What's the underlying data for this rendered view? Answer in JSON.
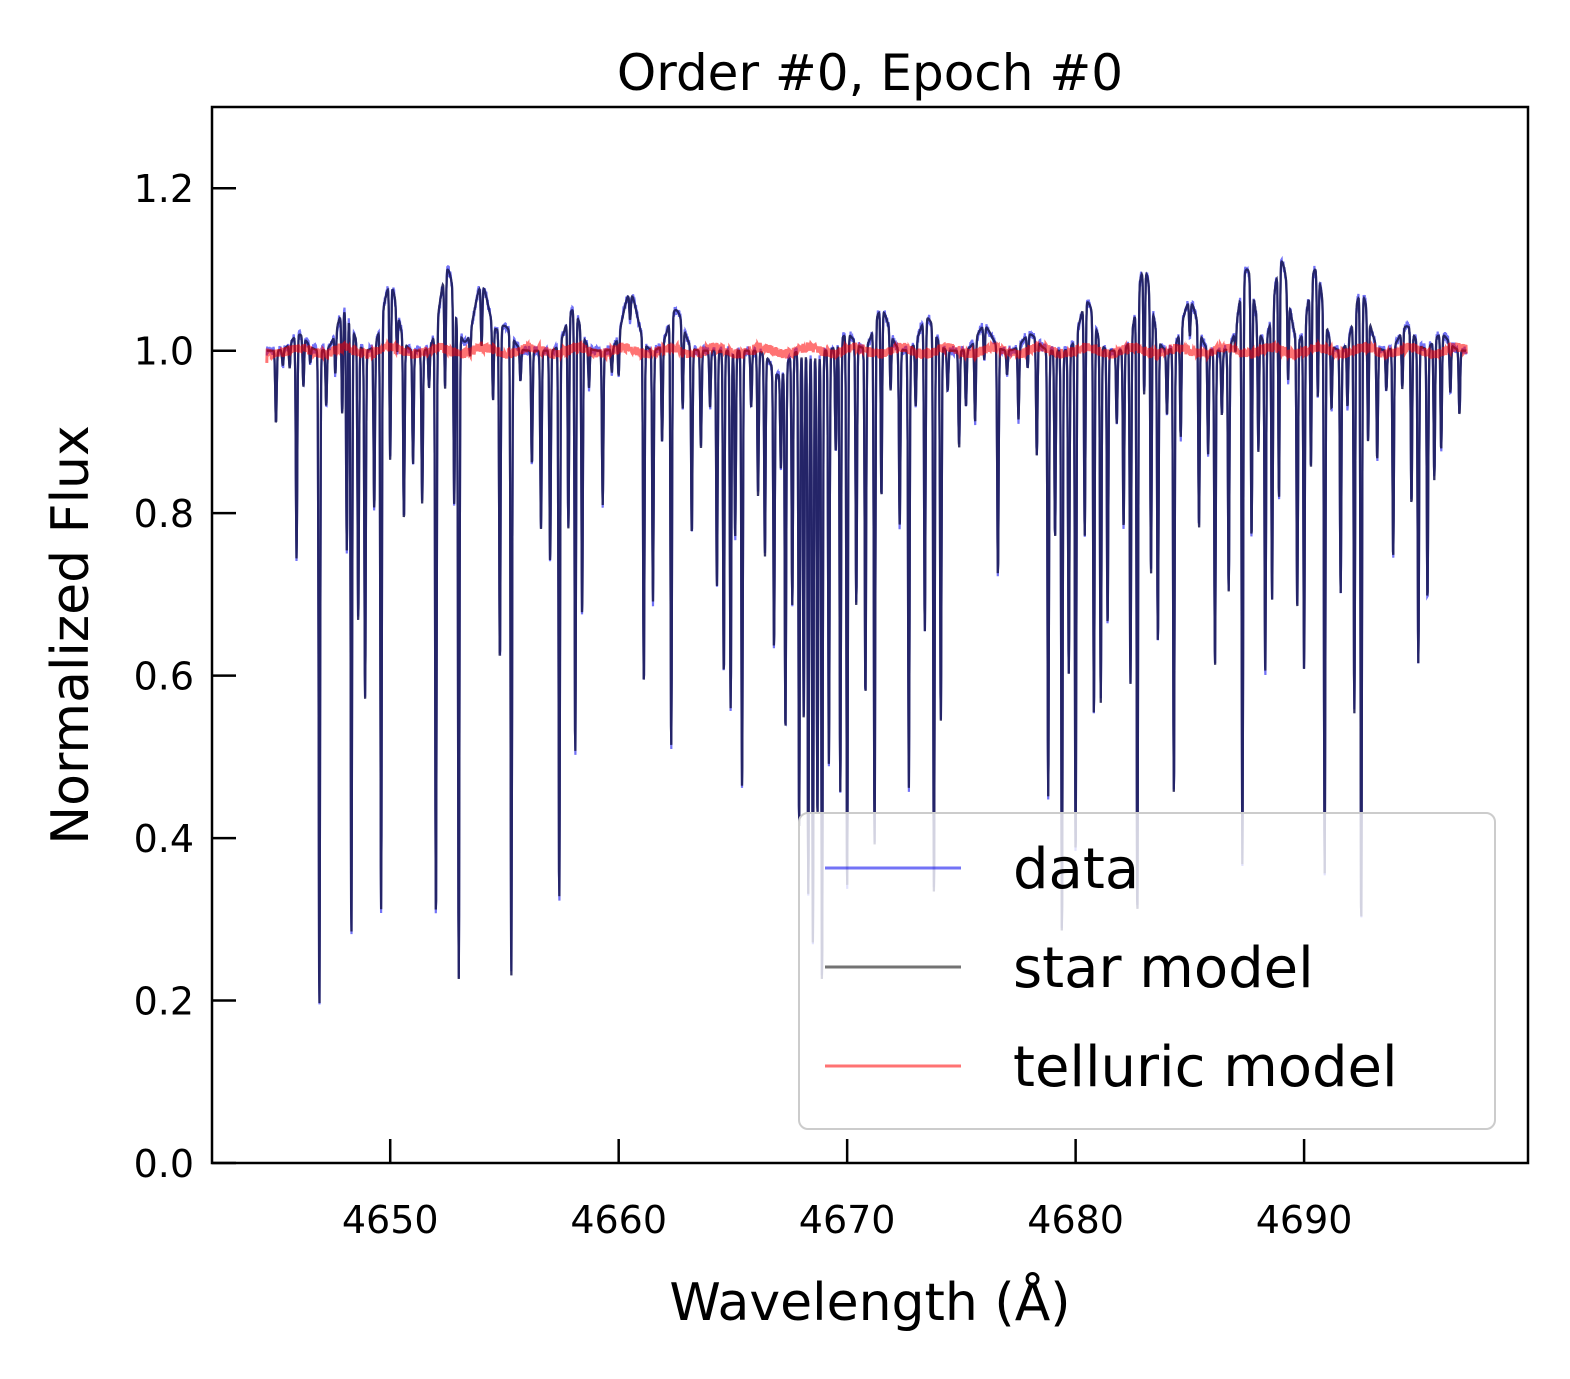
{
  "chart_data": {
    "type": "line",
    "title": "Order #0, Epoch #0",
    "xlabel": "Wavelength (Å)",
    "ylabel": "Normalized Flux",
    "xlim": [
      4642.2,
      4699.8
    ],
    "ylim": [
      0.0,
      1.3
    ],
    "xticks": [
      4650,
      4660,
      4670,
      4680,
      4690
    ],
    "xtick_labels": [
      "4650",
      "4660",
      "4670",
      "4680",
      "4690"
    ],
    "yticks": [
      0.0,
      0.2,
      0.4,
      0.6,
      0.8,
      1.0,
      1.2
    ],
    "ytick_labels": [
      "0.0",
      "0.2",
      "0.4",
      "0.6",
      "0.8",
      "1.0",
      "1.2"
    ],
    "grid": false,
    "legend_position": "lower-right",
    "series": [
      {
        "name": "data",
        "color": "#0000ee",
        "opacity": 0.55,
        "stroke_width": 2.2
      },
      {
        "name": "star model",
        "color": "#000000",
        "opacity": 0.55,
        "stroke_width": 2.2
      },
      {
        "name": "telluric model",
        "color": "#ff0000",
        "opacity": 0.55,
        "stroke_width": 3
      },
      {
        "name": "",
        "color": "#1f1f66",
        "opacity": 0.75,
        "stroke_width": 2.2
      }
    ],
    "x_range": [
      4644.6,
      4697.1
    ],
    "continuum": 1.0,
    "absorption_lines": [
      [
        4645.0,
        0.91
      ],
      [
        4645.3,
        0.98
      ],
      [
        4645.6,
        0.97
      ],
      [
        4645.9,
        0.73
      ],
      [
        4646.2,
        0.94
      ],
      [
        4646.5,
        0.98
      ],
      [
        4646.9,
        0.19
      ],
      [
        4647.2,
        0.93
      ],
      [
        4647.6,
        0.95
      ],
      [
        4647.9,
        0.88
      ],
      [
        4648.1,
        0.72
      ],
      [
        4648.3,
        0.27
      ],
      [
        4648.6,
        0.66
      ],
      [
        4648.9,
        0.57
      ],
      [
        4649.3,
        0.8
      ],
      [
        4649.6,
        0.3
      ],
      [
        4650.0,
        0.8
      ],
      [
        4650.3,
        0.95
      ],
      [
        4650.6,
        0.78
      ],
      [
        4651.0,
        0.86
      ],
      [
        4651.4,
        0.81
      ],
      [
        4651.7,
        0.95
      ],
      [
        4652.0,
        0.29
      ],
      [
        4652.4,
        0.87
      ],
      [
        4652.8,
        0.76
      ],
      [
        4653.0,
        0.22
      ],
      [
        4653.5,
        0.97
      ],
      [
        4654.0,
        0.93
      ],
      [
        4654.5,
        0.91
      ],
      [
        4654.8,
        0.6
      ],
      [
        4655.3,
        0.22
      ],
      [
        4655.7,
        0.96
      ],
      [
        4656.2,
        0.86
      ],
      [
        4656.6,
        0.78
      ],
      [
        4657.0,
        0.74
      ],
      [
        4657.4,
        0.32
      ],
      [
        4657.8,
        0.75
      ],
      [
        4658.1,
        0.48
      ],
      [
        4658.4,
        0.66
      ],
      [
        4658.7,
        0.95
      ],
      [
        4659.3,
        0.81
      ],
      [
        4659.7,
        0.97
      ],
      [
        4660.0,
        0.95
      ],
      [
        4660.5,
        0.97
      ],
      [
        4661.1,
        0.58
      ],
      [
        4661.5,
        0.69
      ],
      [
        4661.9,
        0.88
      ],
      [
        4662.3,
        0.49
      ],
      [
        4662.8,
        0.9
      ],
      [
        4663.2,
        0.77
      ],
      [
        4663.6,
        0.88
      ],
      [
        4664.0,
        0.93
      ],
      [
        4664.3,
        0.71
      ],
      [
        4664.6,
        0.6
      ],
      [
        4664.9,
        0.56
      ],
      [
        4665.1,
        0.77
      ],
      [
        4665.4,
        0.46
      ],
      [
        4665.8,
        0.93
      ],
      [
        4666.1,
        0.82
      ],
      [
        4666.4,
        0.75
      ],
      [
        4666.8,
        0.65
      ],
      [
        4667.1,
        0.88
      ],
      [
        4667.3,
        0.54
      ],
      [
        4667.6,
        0.69
      ],
      [
        4667.9,
        0.41
      ],
      [
        4668.1,
        0.54
      ],
      [
        4668.3,
        0.33
      ],
      [
        4668.5,
        0.27
      ],
      [
        4668.7,
        0.42
      ],
      [
        4668.9,
        0.22
      ],
      [
        4669.2,
        0.49
      ],
      [
        4669.5,
        0.87
      ],
      [
        4669.7,
        0.45
      ],
      [
        4670.0,
        0.33
      ],
      [
        4670.4,
        0.68
      ],
      [
        4670.8,
        0.57
      ],
      [
        4671.2,
        0.38
      ],
      [
        4671.5,
        0.78
      ],
      [
        4671.9,
        0.93
      ],
      [
        4672.3,
        0.78
      ],
      [
        4672.7,
        0.46
      ],
      [
        4673.0,
        0.92
      ],
      [
        4673.4,
        0.63
      ],
      [
        4673.8,
        0.32
      ],
      [
        4674.1,
        0.54
      ],
      [
        4674.4,
        0.95
      ],
      [
        4674.9,
        0.88
      ],
      [
        4675.2,
        0.93
      ],
      [
        4675.6,
        0.9
      ],
      [
        4676.0,
        0.96
      ],
      [
        4676.6,
        0.72
      ],
      [
        4677.0,
        0.97
      ],
      [
        4677.5,
        0.91
      ],
      [
        4677.9,
        0.96
      ],
      [
        4678.3,
        0.86
      ],
      [
        4678.8,
        0.45
      ],
      [
        4679.1,
        0.77
      ],
      [
        4679.4,
        0.28
      ],
      [
        4679.7,
        0.6
      ],
      [
        4680.0,
        0.37
      ],
      [
        4680.4,
        0.73
      ],
      [
        4680.8,
        0.53
      ],
      [
        4681.1,
        0.56
      ],
      [
        4681.4,
        0.66
      ],
      [
        4681.8,
        0.91
      ],
      [
        4682.1,
        0.78
      ],
      [
        4682.4,
        0.58
      ],
      [
        4682.7,
        0.28
      ],
      [
        4683.0,
        0.86
      ],
      [
        4683.3,
        0.68
      ],
      [
        4683.6,
        0.63
      ],
      [
        4684.0,
        0.92
      ],
      [
        4684.3,
        0.45
      ],
      [
        4684.6,
        0.87
      ],
      [
        4685.0,
        0.96
      ],
      [
        4685.4,
        0.76
      ],
      [
        4685.8,
        0.87
      ],
      [
        4686.1,
        0.61
      ],
      [
        4686.4,
        0.92
      ],
      [
        4686.7,
        0.7
      ],
      [
        4687.0,
        0.97
      ],
      [
        4687.3,
        0.34
      ],
      [
        4687.7,
        0.71
      ],
      [
        4688.0,
        0.85
      ],
      [
        4688.3,
        0.59
      ],
      [
        4688.6,
        0.66
      ],
      [
        4688.9,
        0.74
      ],
      [
        4689.3,
        0.9
      ],
      [
        4689.7,
        0.67
      ],
      [
        4690.0,
        0.59
      ],
      [
        4690.3,
        0.79
      ],
      [
        4690.6,
        0.86
      ],
      [
        4690.9,
        0.34
      ],
      [
        4691.2,
        0.92
      ],
      [
        4691.6,
        0.7
      ],
      [
        4691.9,
        0.92
      ],
      [
        4692.2,
        0.53
      ],
      [
        4692.5,
        0.27
      ],
      [
        4692.8,
        0.85
      ],
      [
        4693.2,
        0.86
      ],
      [
        4693.6,
        0.95
      ],
      [
        4693.9,
        0.74
      ],
      [
        4694.3,
        0.93
      ],
      [
        4694.7,
        0.79
      ],
      [
        4695.0,
        0.61
      ],
      [
        4695.4,
        0.69
      ],
      [
        4695.7,
        0.83
      ],
      [
        4696.0,
        0.86
      ],
      [
        4696.4,
        0.94
      ],
      [
        4696.8,
        0.92
      ]
    ],
    "continuum_bumps": [
      [
        4646.0,
        0.02
      ],
      [
        4648.0,
        0.05
      ],
      [
        4650.0,
        0.08
      ],
      [
        4652.5,
        0.1
      ],
      [
        4654.0,
        0.08
      ],
      [
        4655.0,
        0.03
      ],
      [
        4658.0,
        0.05
      ],
      [
        4660.5,
        0.07
      ],
      [
        4662.5,
        0.05
      ],
      [
        4664.5,
        0.0
      ],
      [
        4667.0,
        -0.03
      ],
      [
        4670.0,
        0.02
      ],
      [
        4671.5,
        0.05
      ],
      [
        4673.5,
        0.04
      ],
      [
        4676.0,
        0.03
      ],
      [
        4678.0,
        0.02
      ],
      [
        4680.5,
        0.06
      ],
      [
        4683.0,
        0.1
      ],
      [
        4685.0,
        0.06
      ],
      [
        4687.5,
        0.1
      ],
      [
        4689.0,
        0.11
      ],
      [
        4690.5,
        0.1
      ],
      [
        4692.5,
        0.07
      ],
      [
        4694.5,
        0.03
      ],
      [
        4696.0,
        0.02
      ]
    ]
  }
}
